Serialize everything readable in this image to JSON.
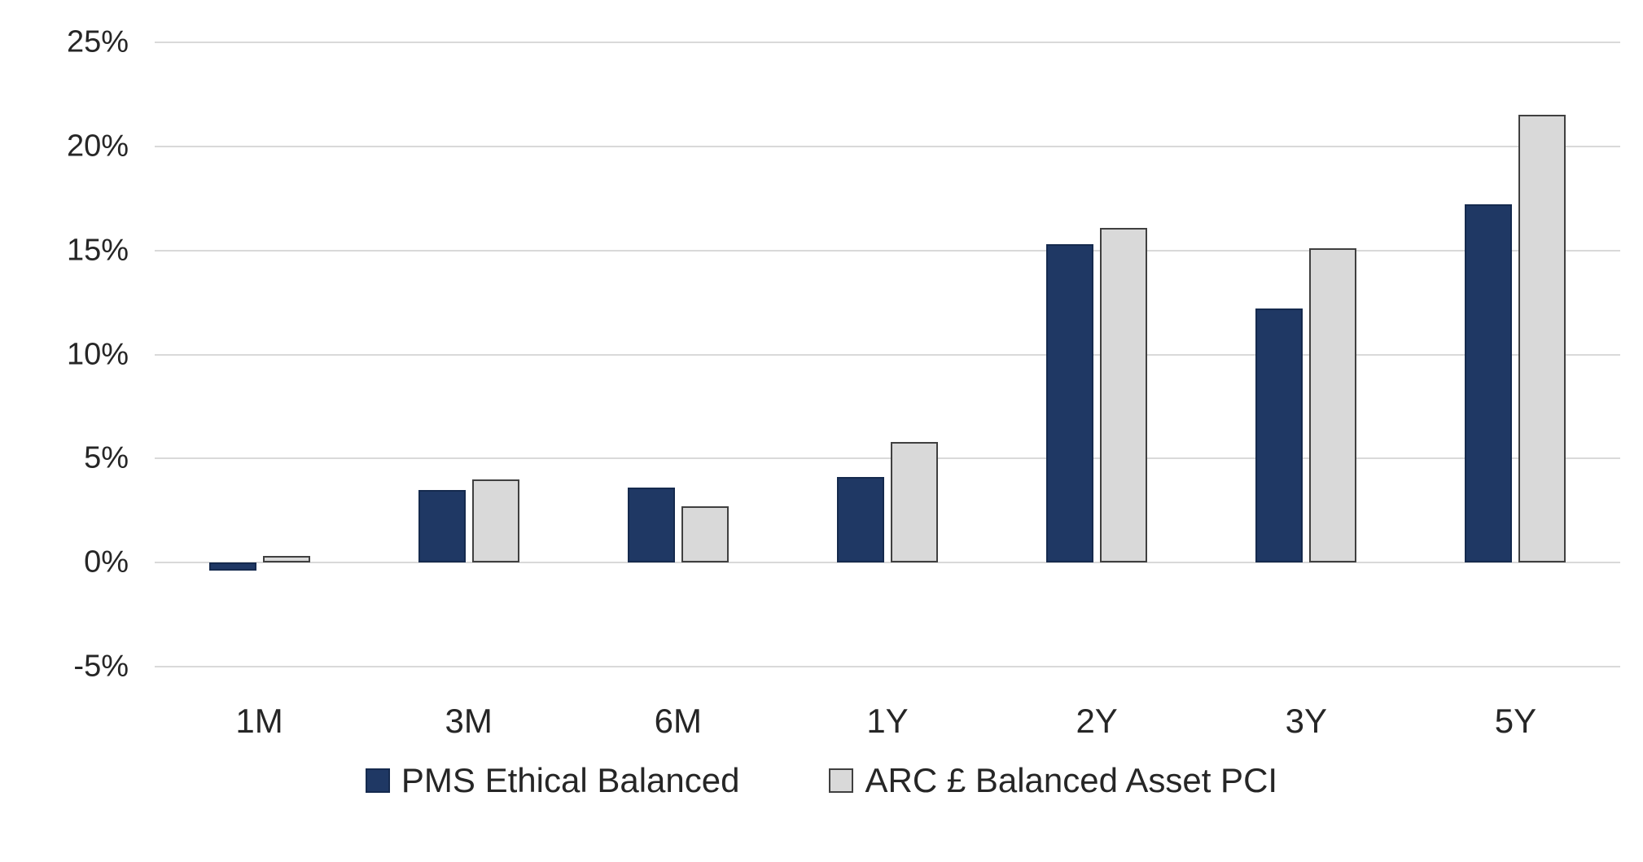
{
  "chart_data": {
    "type": "bar",
    "categories": [
      "1M",
      "3M",
      "6M",
      "1Y",
      "2Y",
      "3Y",
      "5Y"
    ],
    "series": [
      {
        "name": "PMS Ethical Balanced",
        "color": "#1F3864",
        "border_color": "#152A4E",
        "values": [
          -0.4,
          3.5,
          3.6,
          4.1,
          15.3,
          12.2,
          17.2
        ]
      },
      {
        "name": "ARC £ Balanced Asset PCI",
        "color": "#D9D9D9",
        "border_color": "#404040",
        "values": [
          0.3,
          4.0,
          2.7,
          5.8,
          16.1,
          15.1,
          21.5
        ]
      }
    ],
    "title": "",
    "xlabel": "",
    "ylabel": "",
    "ylim": [
      -5,
      25
    ],
    "yticks": [
      -5,
      0,
      5,
      10,
      15,
      20,
      25
    ],
    "ytick_suffix": "%",
    "grid": "horizontal",
    "gridline_color": "#D9D9D9",
    "legend_position": "bottom",
    "text_color": "#262626",
    "background_color": "#FFFFFF"
  }
}
